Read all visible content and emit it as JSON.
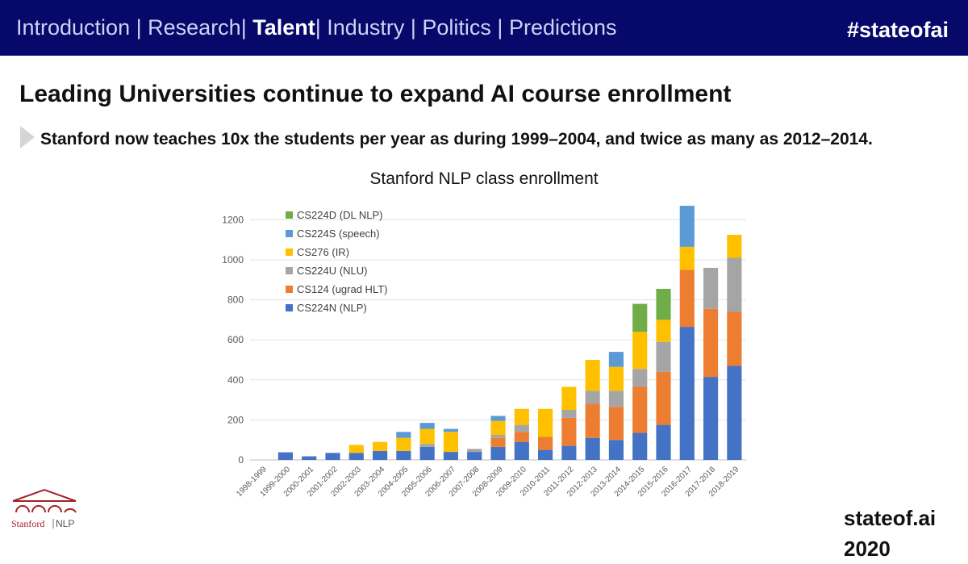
{
  "nav": {
    "items": [
      "Introduction",
      "Research",
      "Talent",
      "Industry",
      "Politics",
      "Predictions"
    ],
    "active": "Talent",
    "separator": "|"
  },
  "header": {
    "hashtag": "#stateofai"
  },
  "headline": "Leading Universities continue to expand AI course enrollment",
  "bullet": "Stanford now teaches 10x the students per year as during 1999–2004, and twice as many as 2012–2014.",
  "logo": {
    "left": "Stanford",
    "right": "NLP"
  },
  "footer": {
    "site": "stateof.ai",
    "year": "2020"
  },
  "colors": {
    "header_bg": "#06086a",
    "CS224N": "#4472c4",
    "CS124": "#ed7d31",
    "CS224U": "#a5a5a5",
    "CS276": "#ffc000",
    "CS224S": "#5b9bd5",
    "CS224D": "#70ad47",
    "logo_red": "#a42228"
  },
  "chart_data": {
    "type": "bar",
    "stacked": true,
    "title": "Stanford NLP class enrollment",
    "xlabel": "",
    "ylabel": "",
    "ylim": [
      0,
      1250
    ],
    "yticks": [
      0,
      200,
      400,
      600,
      800,
      1000,
      1200
    ],
    "grid": true,
    "legend_position": "top-left",
    "categories": [
      "1998-1999",
      "1999-2000",
      "2000-2001",
      "2001-2002",
      "2002-2003",
      "2003-2004",
      "2004-2005",
      "2005-2006",
      "2006-2007",
      "2007-2008",
      "2008-2009",
      "2009-2010",
      "2010-2011",
      "2011-2012",
      "2012-2013",
      "2013-2014",
      "2014-2015",
      "2015-2016",
      "2016-2017",
      "2017-2018",
      "2018-2019"
    ],
    "series": [
      {
        "name": "CS224N (NLP)",
        "color": "#4472c4",
        "values": [
          0,
          38,
          18,
          35,
          35,
          45,
          45,
          65,
          40,
          40,
          65,
          90,
          50,
          70,
          110,
          100,
          135,
          175,
          665,
          415,
          470
        ]
      },
      {
        "name": "CS124 (ugrad HLT)",
        "color": "#ed7d31",
        "values": [
          0,
          0,
          0,
          0,
          0,
          0,
          0,
          0,
          0,
          0,
          45,
          50,
          65,
          140,
          170,
          165,
          230,
          265,
          285,
          340,
          270
        ]
      },
      {
        "name": "CS224U (NLU)",
        "color": "#a5a5a5",
        "values": [
          0,
          0,
          0,
          0,
          0,
          0,
          0,
          15,
          0,
          15,
          15,
          35,
          0,
          40,
          65,
          80,
          90,
          150,
          0,
          205,
          270
        ]
      },
      {
        "name": "CS276 (IR)",
        "color": "#ffc000",
        "values": [
          0,
          0,
          0,
          0,
          40,
          45,
          65,
          75,
          100,
          0,
          70,
          80,
          140,
          115,
          155,
          120,
          185,
          110,
          115,
          0,
          115
        ]
      },
      {
        "name": "CS224S (speech)",
        "color": "#5b9bd5",
        "values": [
          0,
          0,
          0,
          0,
          0,
          0,
          30,
          30,
          15,
          0,
          25,
          0,
          0,
          0,
          0,
          75,
          0,
          0,
          205,
          0,
          0
        ]
      },
      {
        "name": "CS224D (DL NLP)",
        "color": "#70ad47",
        "values": [
          0,
          0,
          0,
          0,
          0,
          0,
          0,
          0,
          0,
          0,
          0,
          0,
          0,
          0,
          0,
          0,
          140,
          155,
          0,
          0,
          0
        ]
      }
    ]
  }
}
